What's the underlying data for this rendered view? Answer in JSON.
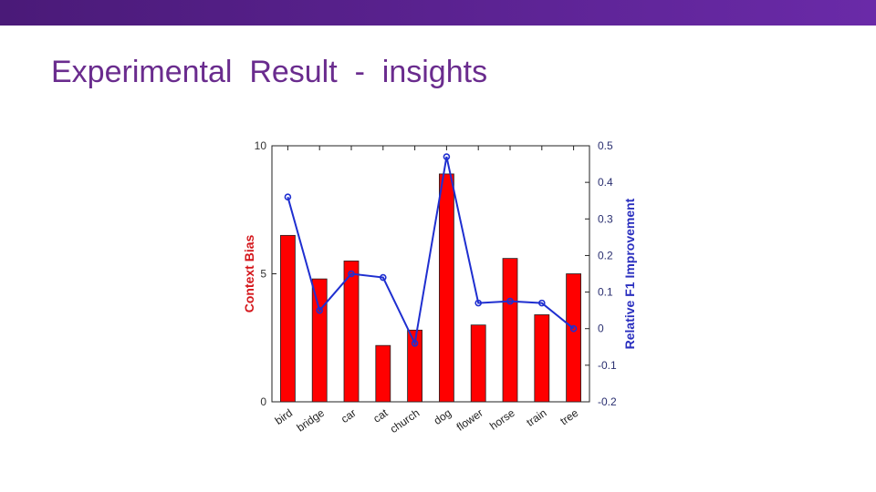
{
  "slide": {
    "title": "Experimental  Result  -  insights"
  },
  "colors": {
    "topbar": "#5b2594",
    "title": "#6a2c8e",
    "bars": "#ff0000",
    "line": "#1f2fd0",
    "leftAxisLabel": "#d4161b",
    "rightAxisLabel": "#2a2fbf"
  },
  "chart_data": {
    "type": "bar",
    "title": "",
    "categories": [
      "bird",
      "bridge",
      "car",
      "cat",
      "church",
      "dog",
      "flower",
      "horse",
      "train",
      "tree"
    ],
    "series": [
      {
        "type": "bar",
        "axis": "left",
        "values": [
          6.5,
          4.8,
          5.5,
          2.2,
          2.8,
          8.9,
          3.0,
          5.6,
          3.4,
          5.0
        ]
      },
      {
        "type": "line",
        "axis": "right",
        "values": [
          0.36,
          0.05,
          0.15,
          0.14,
          -0.04,
          0.47,
          0.07,
          0.075,
          0.07,
          0.0
        ]
      }
    ],
    "ylabel": "Context Bias",
    "y2label": "Relative F1 Improvement",
    "ylim": [
      0,
      10
    ],
    "y2lim": [
      -0.2,
      0.5
    ],
    "yticks": [
      "0",
      "5",
      "10"
    ],
    "y2ticks": [
      "-0.2",
      "-0.1",
      "0",
      "0.1",
      "0.2",
      "0.3",
      "0.4",
      "0.5"
    ],
    "grid": false,
    "legend": "none"
  }
}
